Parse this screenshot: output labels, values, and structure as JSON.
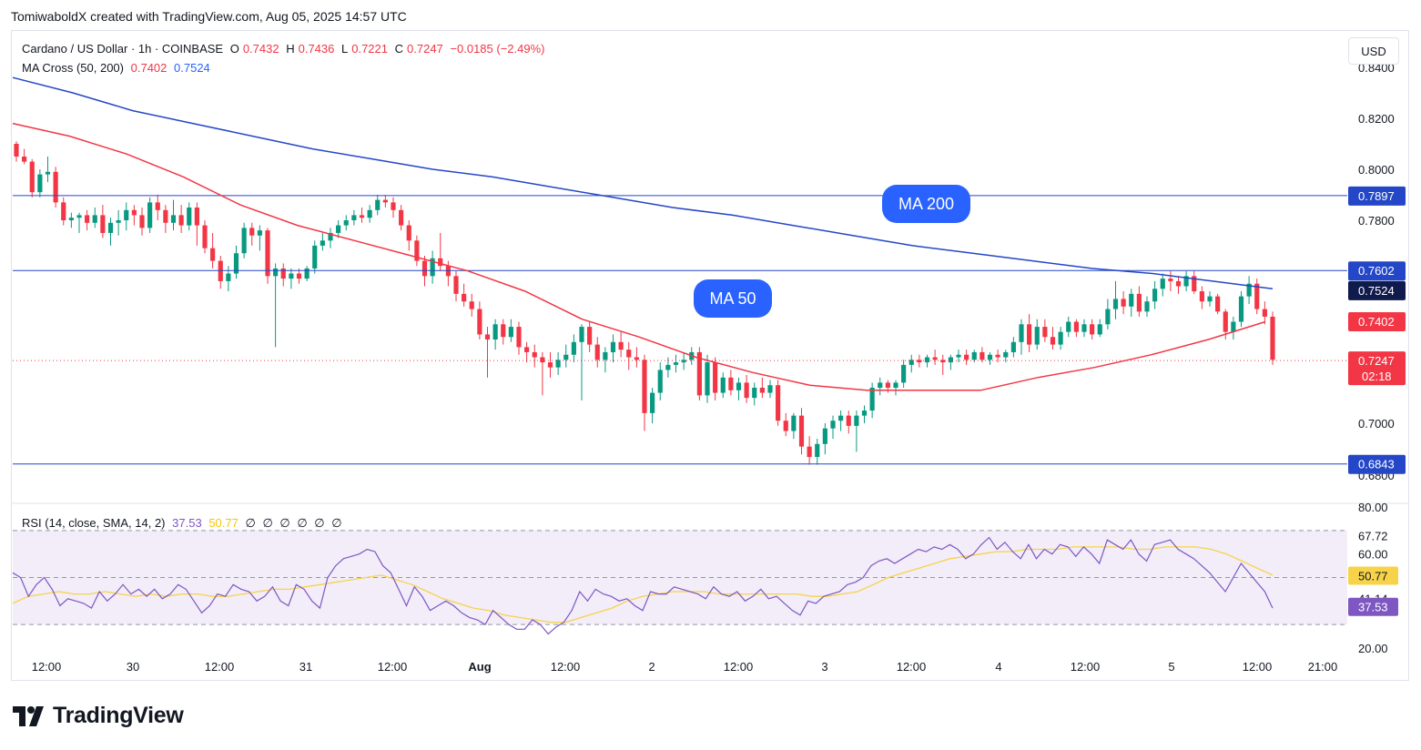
{
  "credit": "TomiwaboldX created with TradingView.com, Aug 05, 2025 14:57 UTC",
  "legend": {
    "symbol": "Cardano / US Dollar · 1h · COINBASE",
    "o_label": "O",
    "o_value": "0.7432",
    "h_label": "H",
    "h_value": "0.7436",
    "l_label": "L",
    "l_value": "0.7221",
    "c_label": "C",
    "c_value": "0.7247",
    "change": "−0.0185 (−2.49%)",
    "ma_name": "MA Cross (50, 200)",
    "ma50_value": "0.7402",
    "ma200_value": "0.7524"
  },
  "rsi_legend": {
    "name": "RSI (14, close, SMA, 14, 2)",
    "rsi_value": "37.53",
    "sma_value": "50.77",
    "empties": [
      "∅",
      "∅",
      "∅",
      "∅",
      "∅",
      "∅"
    ]
  },
  "currency_button": "USD",
  "annotations": {
    "ma200": "MA 200",
    "ma50": "MA 50"
  },
  "footer": {
    "brand": "TradingView"
  },
  "colors": {
    "up": "#089981",
    "down": "#f23645",
    "ma200": "#2447c7",
    "ma50": "#f23645",
    "rsi": "#7e57c2",
    "rsi_sma": "#f7d34a",
    "hline": "#2447c7"
  },
  "chart_data": {
    "type": "candlestick",
    "symbol": "ADA/USD",
    "timeframe": "1h",
    "x_ticks": [
      "12:00",
      "30",
      "12:00",
      "31",
      "12:00",
      "Aug",
      "12:00",
      "2",
      "12:00",
      "3",
      "12:00",
      "4",
      "12:00",
      "5",
      "12:00",
      "21:00"
    ],
    "y_ticks": [
      "0.8400",
      "0.8200",
      "0.8000",
      "0.7800",
      "0.7000",
      "0.6800"
    ],
    "y_range": [
      0.68,
      0.84
    ],
    "horizontal_levels": [
      "0.7897",
      "0.7602",
      "0.6843"
    ],
    "price_badges": {
      "ma200": "0.7524",
      "ma50": "0.7402",
      "last": "0.7247",
      "countdown": "02:18"
    },
    "candles_ohlc": [
      [
        0.81,
        0.811,
        0.803,
        0.805
      ],
      [
        0.805,
        0.808,
        0.802,
        0.803
      ],
      [
        0.803,
        0.804,
        0.789,
        0.791
      ],
      [
        0.791,
        0.8,
        0.789,
        0.798
      ],
      [
        0.798,
        0.805,
        0.795,
        0.799
      ],
      [
        0.799,
        0.801,
        0.785,
        0.787
      ],
      [
        0.787,
        0.789,
        0.778,
        0.78
      ],
      [
        0.78,
        0.783,
        0.777,
        0.781
      ],
      [
        0.781,
        0.783,
        0.775,
        0.782
      ],
      [
        0.782,
        0.784,
        0.776,
        0.779
      ],
      [
        0.779,
        0.785,
        0.777,
        0.782
      ],
      [
        0.782,
        0.786,
        0.773,
        0.775
      ],
      [
        0.775,
        0.781,
        0.77,
        0.779
      ],
      [
        0.779,
        0.784,
        0.774,
        0.78
      ],
      [
        0.78,
        0.787,
        0.776,
        0.784
      ],
      [
        0.784,
        0.786,
        0.778,
        0.782
      ],
      [
        0.782,
        0.785,
        0.774,
        0.777
      ],
      [
        0.777,
        0.789,
        0.775,
        0.787
      ],
      [
        0.787,
        0.79,
        0.78,
        0.784
      ],
      [
        0.784,
        0.786,
        0.775,
        0.779
      ],
      [
        0.779,
        0.788,
        0.776,
        0.782
      ],
      [
        0.782,
        0.786,
        0.775,
        0.778
      ],
      [
        0.778,
        0.787,
        0.776,
        0.785
      ],
      [
        0.785,
        0.787,
        0.77,
        0.778
      ],
      [
        0.778,
        0.78,
        0.767,
        0.769
      ],
      [
        0.769,
        0.775,
        0.761,
        0.764
      ],
      [
        0.764,
        0.766,
        0.753,
        0.756
      ],
      [
        0.756,
        0.762,
        0.752,
        0.759
      ],
      [
        0.759,
        0.77,
        0.757,
        0.767
      ],
      [
        0.767,
        0.779,
        0.765,
        0.777
      ],
      [
        0.777,
        0.779,
        0.77,
        0.774
      ],
      [
        0.774,
        0.778,
        0.768,
        0.776
      ],
      [
        0.776,
        0.777,
        0.755,
        0.758
      ],
      [
        0.758,
        0.763,
        0.73,
        0.761
      ],
      [
        0.761,
        0.763,
        0.754,
        0.757
      ],
      [
        0.757,
        0.761,
        0.753,
        0.759
      ],
      [
        0.759,
        0.761,
        0.755,
        0.757
      ],
      [
        0.757,
        0.762,
        0.756,
        0.761
      ],
      [
        0.761,
        0.772,
        0.759,
        0.77
      ],
      [
        0.77,
        0.775,
        0.768,
        0.772
      ],
      [
        0.772,
        0.777,
        0.769,
        0.775
      ],
      [
        0.775,
        0.78,
        0.773,
        0.778
      ],
      [
        0.778,
        0.782,
        0.776,
        0.78
      ],
      [
        0.78,
        0.784,
        0.778,
        0.782
      ],
      [
        0.782,
        0.785,
        0.779,
        0.781
      ],
      [
        0.781,
        0.786,
        0.779,
        0.784
      ],
      [
        0.784,
        0.79,
        0.782,
        0.788
      ],
      [
        0.788,
        0.79,
        0.785,
        0.787
      ],
      [
        0.787,
        0.789,
        0.781,
        0.784
      ],
      [
        0.784,
        0.786,
        0.776,
        0.778
      ],
      [
        0.778,
        0.78,
        0.768,
        0.772
      ],
      [
        0.772,
        0.774,
        0.762,
        0.764
      ],
      [
        0.764,
        0.766,
        0.754,
        0.758
      ],
      [
        0.758,
        0.768,
        0.755,
        0.765
      ],
      [
        0.765,
        0.775,
        0.76,
        0.762
      ],
      [
        0.762,
        0.764,
        0.754,
        0.758
      ],
      [
        0.758,
        0.76,
        0.748,
        0.751
      ],
      [
        0.751,
        0.755,
        0.746,
        0.748
      ],
      [
        0.748,
        0.751,
        0.742,
        0.745
      ],
      [
        0.745,
        0.748,
        0.733,
        0.735
      ],
      [
        0.735,
        0.738,
        0.718,
        0.733
      ],
      [
        0.733,
        0.741,
        0.729,
        0.739
      ],
      [
        0.739,
        0.741,
        0.731,
        0.734
      ],
      [
        0.734,
        0.741,
        0.732,
        0.738
      ],
      [
        0.738,
        0.74,
        0.727,
        0.73
      ],
      [
        0.73,
        0.732,
        0.724,
        0.728
      ],
      [
        0.728,
        0.731,
        0.722,
        0.726
      ],
      [
        0.726,
        0.728,
        0.711,
        0.724
      ],
      [
        0.724,
        0.728,
        0.718,
        0.722
      ],
      [
        0.722,
        0.728,
        0.719,
        0.725
      ],
      [
        0.725,
        0.731,
        0.722,
        0.727
      ],
      [
        0.727,
        0.735,
        0.724,
        0.732
      ],
      [
        0.732,
        0.739,
        0.709,
        0.738
      ],
      [
        0.738,
        0.74,
        0.728,
        0.731
      ],
      [
        0.731,
        0.734,
        0.722,
        0.725
      ],
      [
        0.725,
        0.73,
        0.72,
        0.728
      ],
      [
        0.728,
        0.735,
        0.724,
        0.732
      ],
      [
        0.732,
        0.736,
        0.726,
        0.729
      ],
      [
        0.729,
        0.732,
        0.721,
        0.726
      ],
      [
        0.726,
        0.73,
        0.722,
        0.725
      ],
      [
        0.725,
        0.727,
        0.697,
        0.704
      ],
      [
        0.704,
        0.714,
        0.7,
        0.712
      ],
      [
        0.712,
        0.724,
        0.709,
        0.721
      ],
      [
        0.721,
        0.726,
        0.718,
        0.723
      ],
      [
        0.723,
        0.727,
        0.72,
        0.724
      ],
      [
        0.724,
        0.728,
        0.721,
        0.725
      ],
      [
        0.725,
        0.73,
        0.723,
        0.728
      ],
      [
        0.728,
        0.73,
        0.709,
        0.711
      ],
      [
        0.711,
        0.727,
        0.708,
        0.724
      ],
      [
        0.724,
        0.726,
        0.709,
        0.712
      ],
      [
        0.712,
        0.72,
        0.71,
        0.718
      ],
      [
        0.718,
        0.721,
        0.711,
        0.713
      ],
      [
        0.713,
        0.718,
        0.709,
        0.716
      ],
      [
        0.716,
        0.719,
        0.708,
        0.71
      ],
      [
        0.71,
        0.716,
        0.707,
        0.714
      ],
      [
        0.714,
        0.718,
        0.71,
        0.712
      ],
      [
        0.712,
        0.717,
        0.71,
        0.715
      ],
      [
        0.715,
        0.717,
        0.699,
        0.701
      ],
      [
        0.701,
        0.704,
        0.695,
        0.697
      ],
      [
        0.697,
        0.704,
        0.694,
        0.703
      ],
      [
        0.703,
        0.706,
        0.688,
        0.691
      ],
      [
        0.691,
        0.695,
        0.684,
        0.687
      ],
      [
        0.687,
        0.694,
        0.684,
        0.692
      ],
      [
        0.692,
        0.7,
        0.688,
        0.698
      ],
      [
        0.698,
        0.703,
        0.694,
        0.701
      ],
      [
        0.701,
        0.705,
        0.697,
        0.703
      ],
      [
        0.703,
        0.705,
        0.696,
        0.699
      ],
      [
        0.699,
        0.705,
        0.689,
        0.703
      ],
      [
        0.703,
        0.707,
        0.7,
        0.705
      ],
      [
        0.705,
        0.716,
        0.702,
        0.714
      ],
      [
        0.714,
        0.718,
        0.711,
        0.716
      ],
      [
        0.716,
        0.717,
        0.712,
        0.714
      ],
      [
        0.714,
        0.717,
        0.711,
        0.716
      ],
      [
        0.716,
        0.725,
        0.714,
        0.723
      ],
      [
        0.723,
        0.727,
        0.72,
        0.725
      ],
      [
        0.725,
        0.727,
        0.722,
        0.724
      ],
      [
        0.724,
        0.727,
        0.722,
        0.726
      ],
      [
        0.726,
        0.729,
        0.723,
        0.725
      ],
      [
        0.725,
        0.727,
        0.719,
        0.724
      ],
      [
        0.724,
        0.727,
        0.721,
        0.726
      ],
      [
        0.726,
        0.729,
        0.724,
        0.727
      ],
      [
        0.727,
        0.729,
        0.723,
        0.725
      ],
      [
        0.725,
        0.729,
        0.724,
        0.728
      ],
      [
        0.728,
        0.73,
        0.724,
        0.725
      ],
      [
        0.725,
        0.728,
        0.723,
        0.727
      ],
      [
        0.727,
        0.729,
        0.724,
        0.726
      ],
      [
        0.726,
        0.729,
        0.724,
        0.728
      ],
      [
        0.728,
        0.734,
        0.726,
        0.732
      ],
      [
        0.732,
        0.741,
        0.727,
        0.739
      ],
      [
        0.739,
        0.743,
        0.728,
        0.731
      ],
      [
        0.731,
        0.741,
        0.729,
        0.738
      ],
      [
        0.738,
        0.741,
        0.732,
        0.734
      ],
      [
        0.734,
        0.738,
        0.729,
        0.731
      ],
      [
        0.731,
        0.738,
        0.729,
        0.736
      ],
      [
        0.736,
        0.742,
        0.734,
        0.74
      ],
      [
        0.74,
        0.741,
        0.734,
        0.736
      ],
      [
        0.736,
        0.741,
        0.734,
        0.739
      ],
      [
        0.739,
        0.741,
        0.733,
        0.735
      ],
      [
        0.735,
        0.741,
        0.734,
        0.739
      ],
      [
        0.739,
        0.749,
        0.737,
        0.745
      ],
      [
        0.745,
        0.756,
        0.741,
        0.749
      ],
      [
        0.749,
        0.752,
        0.743,
        0.746
      ],
      [
        0.746,
        0.753,
        0.742,
        0.751
      ],
      [
        0.751,
        0.754,
        0.742,
        0.744
      ],
      [
        0.744,
        0.75,
        0.742,
        0.748
      ],
      [
        0.748,
        0.756,
        0.745,
        0.753
      ],
      [
        0.753,
        0.759,
        0.75,
        0.757
      ],
      [
        0.757,
        0.76,
        0.752,
        0.756
      ],
      [
        0.756,
        0.758,
        0.751,
        0.754
      ],
      [
        0.754,
        0.76,
        0.752,
        0.758
      ],
      [
        0.758,
        0.76,
        0.751,
        0.752
      ],
      [
        0.752,
        0.754,
        0.745,
        0.748
      ],
      [
        0.748,
        0.752,
        0.746,
        0.75
      ],
      [
        0.75,
        0.751,
        0.743,
        0.744
      ],
      [
        0.744,
        0.745,
        0.733,
        0.736
      ],
      [
        0.736,
        0.742,
        0.733,
        0.74
      ],
      [
        0.74,
        0.752,
        0.738,
        0.75
      ],
      [
        0.75,
        0.758,
        0.747,
        0.755
      ],
      [
        0.755,
        0.757,
        0.743,
        0.745
      ],
      [
        0.745,
        0.748,
        0.739,
        0.742
      ],
      [
        0.742,
        0.744,
        0.723,
        0.725
      ]
    ],
    "ma50": [
      0.818,
      0.813,
      0.806,
      0.797,
      0.786,
      0.778,
      0.772,
      0.766,
      0.76,
      0.752,
      0.741,
      0.734,
      0.726,
      0.72,
      0.715,
      0.713,
      0.713,
      0.713,
      0.718,
      0.722,
      0.727,
      0.733,
      0.74
    ],
    "ma200": [
      0.836,
      0.83,
      0.823,
      0.818,
      0.813,
      0.808,
      0.804,
      0.8,
      0.797,
      0.793,
      0.789,
      0.785,
      0.782,
      0.778,
      0.774,
      0.77,
      0.767,
      0.764,
      0.761,
      0.759,
      0.756,
      0.753
    ],
    "rsi": {
      "y_ticks": [
        "80.00",
        "67.72",
        "60.00",
        "50.77",
        "41.14",
        "37.53",
        "20.00"
      ],
      "y_range": [
        20,
        80
      ],
      "bands": [
        70,
        30
      ],
      "midline": 50,
      "rsi_values": [
        52,
        50,
        42,
        47,
        50,
        45,
        38,
        41,
        40,
        39,
        37,
        44,
        40,
        43,
        47,
        43,
        45,
        42,
        45,
        41,
        43,
        47,
        45,
        40,
        35,
        38,
        43,
        42,
        47,
        45,
        44,
        40,
        42,
        46,
        40,
        38,
        47,
        45,
        40,
        37,
        50,
        55,
        58,
        59,
        60,
        62,
        61,
        55,
        52,
        45,
        38,
        46,
        42,
        36,
        38,
        40,
        38,
        35,
        33,
        32,
        30,
        36,
        33,
        30,
        28,
        28,
        32,
        30,
        26,
        29,
        31,
        36,
        44,
        40,
        45,
        43,
        42,
        40,
        41,
        38,
        36,
        44,
        43,
        43,
        46,
        45,
        44,
        43,
        41,
        46,
        43,
        42,
        44,
        40,
        42,
        45,
        41,
        42,
        39,
        36,
        34,
        40,
        39,
        42,
        43,
        44,
        47,
        48,
        50,
        55,
        57,
        58,
        56,
        58,
        60,
        62,
        61,
        63,
        62,
        64,
        62,
        58,
        60,
        64,
        67,
        62,
        65,
        61,
        58,
        64,
        58,
        62,
        60,
        64,
        63,
        59,
        63,
        60,
        56,
        66,
        64,
        62,
        66,
        60,
        57,
        64,
        65,
        66,
        62,
        60,
        58,
        55,
        52,
        48,
        44,
        50,
        56,
        52,
        48,
        44,
        37
      ],
      "sma_values": [
        39,
        42,
        43,
        44,
        43,
        43,
        44,
        43,
        42,
        43,
        42,
        43,
        43,
        42,
        42,
        43,
        44,
        45,
        45,
        46,
        47,
        48,
        49,
        50,
        51,
        49,
        47,
        44,
        41,
        39,
        37,
        36,
        34,
        33,
        32,
        31,
        31,
        33,
        35,
        37,
        40,
        42,
        43,
        44,
        44,
        44,
        43,
        43,
        43,
        43,
        43,
        43,
        42,
        42,
        43,
        44,
        47,
        50,
        52,
        54,
        56,
        58,
        59,
        60,
        61,
        61,
        62,
        62,
        62,
        63,
        63,
        63,
        63,
        62,
        62,
        63,
        63,
        63,
        62,
        60,
        57,
        54,
        51
      ]
    }
  }
}
